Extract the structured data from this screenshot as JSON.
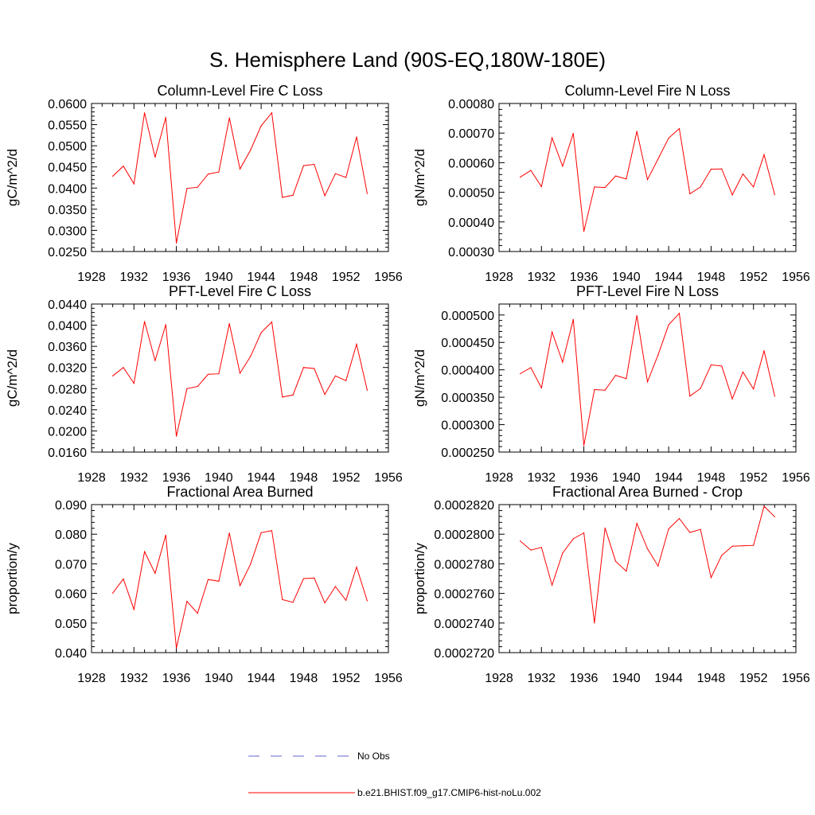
{
  "title": "S. Hemisphere Land (90S-EQ,180W-180E)",
  "legend": {
    "entries": [
      {
        "label": "No Obs",
        "color": "#6666cc",
        "dash": true
      },
      {
        "label": "b.e21.BHIST.f09_g17.CMIP6-hist-noLu.002",
        "color": "#ff0000",
        "dash": false
      }
    ]
  },
  "chart_data": [
    {
      "type": "line",
      "title": "Column-Level Fire C Loss",
      "ylabel": "gC/m^2/d",
      "xlim": [
        1928,
        1956
      ],
      "ylim": [
        0.025,
        0.06
      ],
      "xticks": [
        "1928",
        "1932",
        "1936",
        "1940",
        "1944",
        "1948",
        "1952",
        "1956"
      ],
      "yticks": [
        "0.0250",
        "0.0300",
        "0.0350",
        "0.0400",
        "0.0450",
        "0.0500",
        "0.0550",
        "0.0600"
      ],
      "x": [
        1930,
        1931,
        1932,
        1933,
        1934,
        1935,
        1936,
        1937,
        1938,
        1939,
        1940,
        1941,
        1942,
        1943,
        1944,
        1945,
        1946,
        1947,
        1948,
        1949,
        1950,
        1951,
        1952,
        1953,
        1954
      ],
      "series": [
        {
          "name": "b.e21.BHIST.f09_g17.CMIP6-hist-noLu.002",
          "color": "#ff0000",
          "values": [
            0.0428,
            0.0452,
            0.041,
            0.0578,
            0.0473,
            0.0567,
            0.027,
            0.0399,
            0.0402,
            0.0433,
            0.0438,
            0.0566,
            0.0445,
            0.049,
            0.0547,
            0.0578,
            0.0378,
            0.0383,
            0.0453,
            0.0456,
            0.0382,
            0.0434,
            0.0425,
            0.0521,
            0.0387
          ]
        }
      ]
    },
    {
      "type": "line",
      "title": "Column-Level Fire N Loss",
      "ylabel": "gN/m^2/d",
      "xlim": [
        1928,
        1956
      ],
      "ylim": [
        0.0003,
        0.0008
      ],
      "xticks": [
        "1928",
        "1932",
        "1936",
        "1940",
        "1944",
        "1948",
        "1952",
        "1956"
      ],
      "yticks": [
        "0.00030",
        "0.00040",
        "0.00050",
        "0.00060",
        "0.00070",
        "0.00080"
      ],
      "x": [
        1930,
        1931,
        1932,
        1933,
        1934,
        1935,
        1936,
        1937,
        1938,
        1939,
        1940,
        1941,
        1942,
        1943,
        1944,
        1945,
        1946,
        1947,
        1948,
        1949,
        1950,
        1951,
        1952,
        1953,
        1954
      ],
      "series": [
        {
          "name": "b.e21.BHIST.f09_g17.CMIP6-hist-noLu.002",
          "color": "#ff0000",
          "values": [
            0.000551,
            0.000574,
            0.000519,
            0.000684,
            0.000588,
            0.000699,
            0.000368,
            0.000518,
            0.000516,
            0.000555,
            0.000545,
            0.000706,
            0.000543,
            0.000612,
            0.000683,
            0.000715,
            0.000495,
            0.000518,
            0.000578,
            0.000579,
            0.000491,
            0.000562,
            0.000518,
            0.000627,
            0.000492
          ]
        }
      ]
    },
    {
      "type": "line",
      "title": "PFT-Level Fire C Loss",
      "ylabel": "gC/m^2/d",
      "xlim": [
        1928,
        1956
      ],
      "ylim": [
        0.016,
        0.044
      ],
      "xticks": [
        "1928",
        "1932",
        "1936",
        "1940",
        "1944",
        "1948",
        "1952",
        "1956"
      ],
      "yticks": [
        "0.0160",
        "0.0200",
        "0.0240",
        "0.0280",
        "0.0320",
        "0.0360",
        "0.0400",
        "0.0440"
      ],
      "x": [
        1930,
        1931,
        1932,
        1933,
        1934,
        1935,
        1936,
        1937,
        1938,
        1939,
        1940,
        1941,
        1942,
        1943,
        1944,
        1945,
        1946,
        1947,
        1948,
        1949,
        1950,
        1951,
        1952,
        1953,
        1954
      ],
      "series": [
        {
          "name": "b.e21.BHIST.f09_g17.CMIP6-hist-noLu.002",
          "color": "#ff0000",
          "values": [
            0.0304,
            0.032,
            0.029,
            0.0407,
            0.0333,
            0.0401,
            0.019,
            0.028,
            0.0284,
            0.0307,
            0.0308,
            0.0403,
            0.0309,
            0.0341,
            0.0386,
            0.0406,
            0.0264,
            0.0268,
            0.032,
            0.0318,
            0.0269,
            0.0304,
            0.0295,
            0.0364,
            0.0277
          ]
        }
      ]
    },
    {
      "type": "line",
      "title": "PFT-Level Fire N Loss",
      "ylabel": "gN/m^2/d",
      "xlim": [
        1928,
        1956
      ],
      "ylim": [
        0.00025,
        0.00052
      ],
      "xticks": [
        "1928",
        "1932",
        "1936",
        "1940",
        "1944",
        "1948",
        "1952",
        "1956"
      ],
      "yticks": [
        "0.000250",
        "0.000300",
        "0.000350",
        "0.000400",
        "0.000450",
        "0.000500"
      ],
      "x": [
        1930,
        1931,
        1932,
        1933,
        1934,
        1935,
        1936,
        1937,
        1938,
        1939,
        1940,
        1941,
        1942,
        1943,
        1944,
        1945,
        1946,
        1947,
        1948,
        1949,
        1950,
        1951,
        1952,
        1953,
        1954
      ],
      "series": [
        {
          "name": "b.e21.BHIST.f09_g17.CMIP6-hist-noLu.002",
          "color": "#ff0000",
          "values": [
            0.000393,
            0.000404,
            0.000367,
            0.000469,
            0.000414,
            0.000492,
            0.000262,
            0.000364,
            0.000363,
            0.00039,
            0.000384,
            0.000499,
            0.000378,
            0.000427,
            0.000482,
            0.000503,
            0.000352,
            0.000366,
            0.000409,
            0.000407,
            0.000347,
            0.000396,
            0.000365,
            0.000435,
            0.000352
          ]
        }
      ]
    },
    {
      "type": "line",
      "title": "Fractional Area Burned",
      "ylabel": "proportion/y",
      "xlim": [
        1928,
        1956
      ],
      "ylim": [
        0.04,
        0.09
      ],
      "xticks": [
        "1928",
        "1932",
        "1936",
        "1940",
        "1944",
        "1948",
        "1952",
        "1956"
      ],
      "yticks": [
        "0.040",
        "0.050",
        "0.060",
        "0.070",
        "0.080",
        "0.090"
      ],
      "x": [
        1930,
        1931,
        1932,
        1933,
        1934,
        1935,
        1936,
        1937,
        1938,
        1939,
        1940,
        1941,
        1942,
        1943,
        1944,
        1945,
        1946,
        1947,
        1948,
        1949,
        1950,
        1951,
        1952,
        1953,
        1954
      ],
      "series": [
        {
          "name": "b.e21.BHIST.f09_g17.CMIP6-hist-noLu.002",
          "color": "#ff0000",
          "values": [
            0.0601,
            0.0649,
            0.0546,
            0.0741,
            0.0668,
            0.0797,
            0.0415,
            0.0573,
            0.0533,
            0.0647,
            0.0641,
            0.0804,
            0.0626,
            0.0699,
            0.0805,
            0.0812,
            0.0579,
            0.057,
            0.065,
            0.0652,
            0.0568,
            0.0623,
            0.0577,
            0.0689,
            0.0575
          ]
        }
      ]
    },
    {
      "type": "line",
      "title": "Fractional Area Burned - Crop",
      "ylabel": "proportion/y",
      "xlim": [
        1928,
        1956
      ],
      "ylim": [
        0.000272,
        0.000282
      ],
      "xticks": [
        "1928",
        "1932",
        "1936",
        "1940",
        "1944",
        "1948",
        "1952",
        "1956"
      ],
      "yticks": [
        "0.0002720",
        "0.0002740",
        "0.0002760",
        "0.0002780",
        "0.0002800",
        "0.0002820"
      ],
      "x": [
        1930,
        1931,
        1932,
        1933,
        1934,
        1935,
        1936,
        1937,
        1938,
        1939,
        1940,
        1941,
        1942,
        1943,
        1944,
        1945,
        1946,
        1947,
        1948,
        1949,
        1950,
        1951,
        1952,
        1953,
        1954
      ],
      "series": [
        {
          "name": "b.e21.BHIST.f09_g17.CMIP6-hist-noLu.002",
          "color": "#ff0000",
          "values": [
            0.00027954,
            0.00027893,
            0.00027911,
            0.00027656,
            0.00027873,
            0.00027969,
            0.00028009,
            0.000274,
            0.00028042,
            0.00027817,
            0.0002775,
            0.00028073,
            0.00027902,
            0.00027785,
            0.00028036,
            0.00028106,
            0.00028012,
            0.00028032,
            0.00027707,
            0.00027857,
            0.00027919,
            0.00027922,
            0.00027925,
            0.00028189,
            0.00028118
          ]
        }
      ]
    }
  ]
}
